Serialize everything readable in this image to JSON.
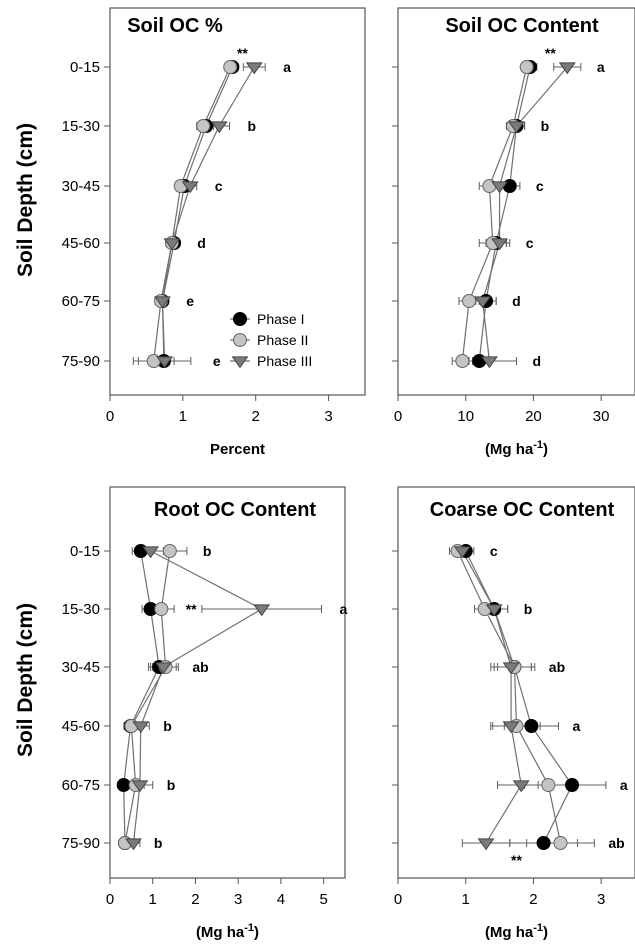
{
  "y_axis_label": "Soil Depth (cm)",
  "chart_data": [
    {
      "type": "line",
      "title": "Soil OC %",
      "xlabel": "Percent",
      "xlabel_sup": "",
      "xlabel_tail": "",
      "ylabel": "Soil Depth (cm)",
      "categories": [
        "0-15",
        "15-30",
        "30-45",
        "45-60",
        "60-75",
        "75-90"
      ],
      "xlim": [
        0,
        3.5
      ],
      "xticks": [
        0,
        1,
        2,
        3
      ],
      "grid": false,
      "series": [
        {
          "name": "Phase I",
          "values": [
            1.68,
            1.32,
            1.02,
            0.88,
            0.72,
            0.74
          ],
          "err": [
            0.08,
            0.1,
            0.08,
            0.07,
            0.06,
            0.06
          ]
        },
        {
          "name": "Phase II",
          "values": [
            1.65,
            1.28,
            0.97,
            0.85,
            0.7,
            0.6
          ],
          "err": [
            0.07,
            0.09,
            0.07,
            0.06,
            0.08,
            0.28
          ]
        },
        {
          "name": "Phase III",
          "values": [
            1.98,
            1.5,
            1.1,
            0.85,
            0.72,
            0.75
          ],
          "err": [
            0.15,
            0.14,
            0.09,
            0.08,
            0.08,
            0.36
          ]
        }
      ],
      "letters": [
        "a",
        "b",
        "c",
        "d",
        "e",
        "e"
      ],
      "annotations": [
        {
          "text": "**",
          "category": "0-15"
        }
      ],
      "legend": {
        "position": "bottom-right",
        "entries": [
          "Phase I",
          "Phase II",
          "Phase III"
        ]
      }
    },
    {
      "type": "line",
      "title": "Soil OC Content",
      "xlabel": "(Mg ha",
      "xlabel_sup": "-1",
      "xlabel_tail": ")",
      "ylabel": "",
      "categories": [
        "0-15",
        "15-30",
        "30-45",
        "45-60",
        "60-75",
        "75-90"
      ],
      "xlim": [
        0,
        35
      ],
      "xticks": [
        0,
        10,
        20,
        30
      ],
      "grid": false,
      "series": [
        {
          "name": "Phase I",
          "values": [
            19.5,
            17.5,
            16.5,
            14.5,
            13.0,
            12.0
          ],
          "err": [
            1.0,
            1.2,
            1.5,
            1.5,
            1.5,
            1.5
          ]
        },
        {
          "name": "Phase II",
          "values": [
            19.0,
            17.0,
            13.5,
            14.0,
            10.5,
            9.5
          ],
          "err": [
            0.8,
            1.0,
            1.5,
            2.0,
            1.5,
            1.5
          ]
        },
        {
          "name": "Phase III",
          "values": [
            25.0,
            17.5,
            15.0,
            15.0,
            12.5,
            13.5
          ],
          "err": [
            2.0,
            1.2,
            1.5,
            1.5,
            2.0,
            4.0
          ]
        }
      ],
      "letters": [
        "a",
        "b",
        "c",
        "c",
        "d",
        "d"
      ],
      "annotations": [
        {
          "text": "**",
          "category": "0-15"
        }
      ]
    },
    {
      "type": "line",
      "title": "Root OC Content",
      "xlabel": "(Mg ha",
      "xlabel_sup": "-1",
      "xlabel_tail": ")",
      "ylabel": "Soil Depth (cm)",
      "categories": [
        "0-15",
        "15-30",
        "30-45",
        "45-60",
        "60-75",
        "75-90"
      ],
      "xlim": [
        0,
        5.5
      ],
      "xticks": [
        0,
        1,
        2,
        3,
        4,
        5
      ],
      "grid": false,
      "series": [
        {
          "name": "Phase I",
          "values": [
            0.72,
            0.95,
            1.15,
            0.48,
            0.32,
            0.35
          ],
          "err": [
            0.2,
            0.2,
            0.25,
            0.15,
            0.1,
            0.1
          ]
        },
        {
          "name": "Phase II",
          "values": [
            1.4,
            1.2,
            1.3,
            0.5,
            0.6,
            0.35
          ],
          "err": [
            0.4,
            0.3,
            0.3,
            0.15,
            0.2,
            0.1
          ]
        },
        {
          "name": "Phase III",
          "values": [
            0.95,
            3.55,
            1.25,
            0.72,
            0.7,
            0.55
          ],
          "err": [
            0.3,
            1.4,
            0.3,
            0.2,
            0.3,
            0.15
          ]
        }
      ],
      "letters": [
        "b",
        "a",
        "ab",
        "b",
        "b",
        "b"
      ],
      "annotations": [
        {
          "text": "**",
          "category": "15-30"
        }
      ]
    },
    {
      "type": "line",
      "title": "Coarse OC Content",
      "xlabel": "(Mg ha",
      "xlabel_sup": "-1",
      "xlabel_tail": ")",
      "ylabel": "",
      "categories": [
        "0-15",
        "15-30",
        "30-45",
        "45-60",
        "60-75",
        "75-90"
      ],
      "xlim": [
        0,
        3.5
      ],
      "xticks": [
        0,
        1,
        2,
        3
      ],
      "grid": false,
      "series": [
        {
          "name": "Phase I",
          "values": [
            1.0,
            1.42,
            1.72,
            1.97,
            2.57,
            2.15
          ],
          "err": [
            0.12,
            0.2,
            0.3,
            0.4,
            0.5,
            0.5
          ]
        },
        {
          "name": "Phase II",
          "values": [
            0.88,
            1.28,
            1.72,
            1.75,
            2.22,
            2.4
          ],
          "err": [
            0.12,
            0.15,
            0.25,
            0.35,
            0.35,
            0.5
          ]
        },
        {
          "name": "Phase III",
          "values": [
            0.95,
            1.42,
            1.67,
            1.67,
            1.82,
            1.3
          ],
          "err": [
            0.1,
            0.2,
            0.3,
            0.3,
            0.35,
            0.35
          ]
        }
      ],
      "letters": [
        "c",
        "b",
        "ab",
        "a",
        "a",
        "ab"
      ],
      "annotations": [
        {
          "text": "**",
          "category": "75-90"
        }
      ]
    }
  ]
}
